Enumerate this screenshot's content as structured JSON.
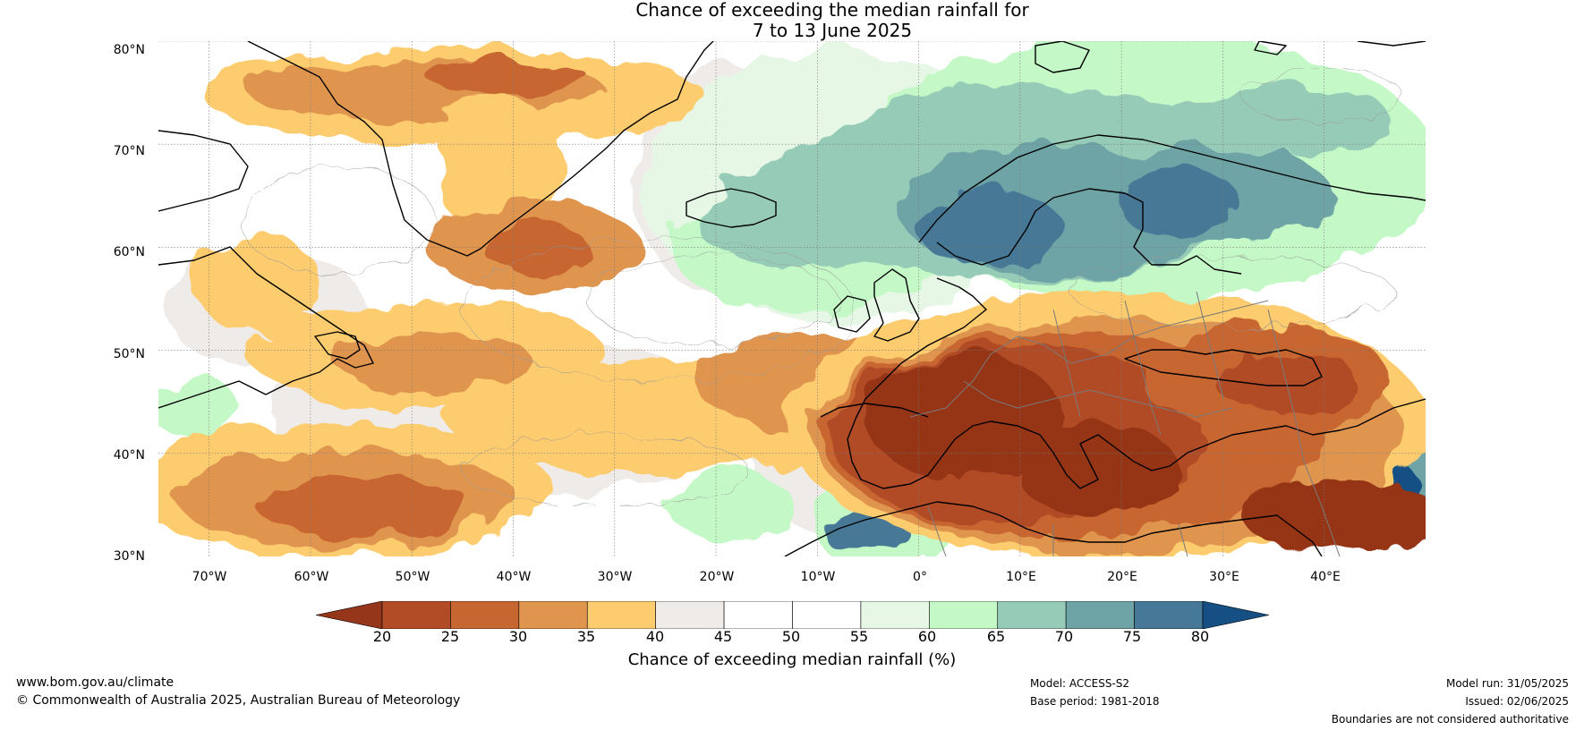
{
  "title": {
    "line1": "Chance of exceeding the median rainfall for",
    "line2": "7 to 13 June 2025"
  },
  "map": {
    "region": "North Atlantic and Europe",
    "lat_range": [
      30,
      80
    ],
    "lon_range": [
      -75,
      50
    ],
    "lat_labels": [
      "80°N",
      "70°N",
      "60°N",
      "50°N",
      "40°N",
      "30°N"
    ],
    "lon_labels": [
      "70°W",
      "60°W",
      "50°W",
      "40°W",
      "30°W",
      "20°W",
      "10°W",
      "0°",
      "10°E",
      "20°E",
      "30°E",
      "40°E"
    ],
    "gridlines": true,
    "coastline_color": "#000000",
    "border_color": "#808080"
  },
  "colorbar": {
    "ticks": [
      "20",
      "25",
      "30",
      "35",
      "40",
      "45",
      "50",
      "55",
      "60",
      "65",
      "70",
      "75",
      "80"
    ],
    "colors": {
      "below_20": "#953519",
      "20_25": "#b14c27",
      "25_30": "#c86632",
      "30_35": "#e0954f",
      "35_40": "#fdcc6e",
      "40_45": "#efebe8",
      "45_50": "#ffffff",
      "50_55": "#ffffff",
      "55_60": "#e6f7e6",
      "60_65": "#c4f8c6",
      "65_70": "#96cbb7",
      "70_75": "#6ea4a6",
      "75_80": "#467997",
      "above_80": "#154f84"
    },
    "label": "Chance of exceeding median rainfall (%)"
  },
  "footer": {
    "website": "www.bom.gov.au/climate",
    "copyright": "© Commonwealth of Australia 2025, Australian Bureau of Meteorology",
    "model": "Model: ACCESS-S2",
    "base_period": "Base period: 1981-2018",
    "model_run": "Model run: 31/05/2025",
    "issued": "Issued: 02/06/2025",
    "disclaimer": "Boundaries are not considered authoritative"
  }
}
